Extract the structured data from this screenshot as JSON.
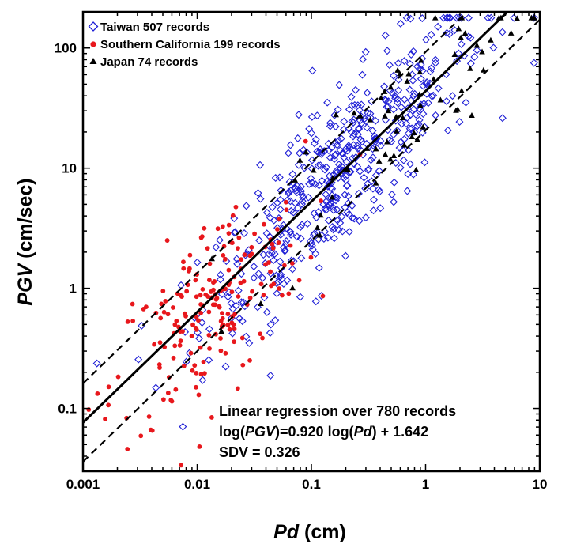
{
  "chart_data": {
    "type": "scatter",
    "xlabel_main": "Pd",
    "xlabel_unit": " (cm)",
    "ylabel_main": "PGV",
    "ylabel_unit": " (cm/sec)",
    "x_scale": "log",
    "y_scale": "log",
    "xlim": [
      0.001,
      10
    ],
    "ylim": [
      0.03,
      200
    ],
    "x_ticks": [
      {
        "value": 0.001,
        "label": "0.001"
      },
      {
        "value": 0.01,
        "label": "0.01"
      },
      {
        "value": 0.1,
        "label": "0.1"
      },
      {
        "value": 1,
        "label": "1"
      },
      {
        "value": 10,
        "label": "10"
      }
    ],
    "y_ticks": [
      {
        "value": 0.1,
        "label": "0.1"
      },
      {
        "value": 1,
        "label": "1"
      },
      {
        "value": 10,
        "label": "10"
      },
      {
        "value": 100,
        "label": "100"
      }
    ],
    "grid": false,
    "legend_position": "top-left",
    "series": [
      {
        "name": "Taiwan 507 records",
        "marker": "diamond-open",
        "color": "#1f1fd6",
        "count": 507,
        "center": [
          -0.72,
          0.92
        ],
        "spread_x": 0.62,
        "spread_y": 0.33
      },
      {
        "name": "Southern California 199 records",
        "marker": "circle-filled",
        "color": "#e8171c",
        "count": 199,
        "center": [
          -1.9,
          -0.18
        ],
        "spread_x": 0.42,
        "spread_y": 0.42
      },
      {
        "name": "Japan 74 records",
        "marker": "triangle-filled",
        "color": "#000000",
        "count": 74,
        "center": [
          -0.3,
          1.3
        ],
        "spread_x": 0.6,
        "spread_y": 0.3
      }
    ],
    "regression": {
      "slope": 0.92,
      "intercept": 1.642,
      "sdv": 0.326
    },
    "annotation": {
      "line1": "Linear regression over 780 records",
      "line2_a": "log(",
      "line2_b": "PGV",
      "line2_c": ")=0.920 log(",
      "line2_d": "Pd",
      "line2_e": ") + 1.642",
      "line3": "SDV = 0.326"
    }
  }
}
